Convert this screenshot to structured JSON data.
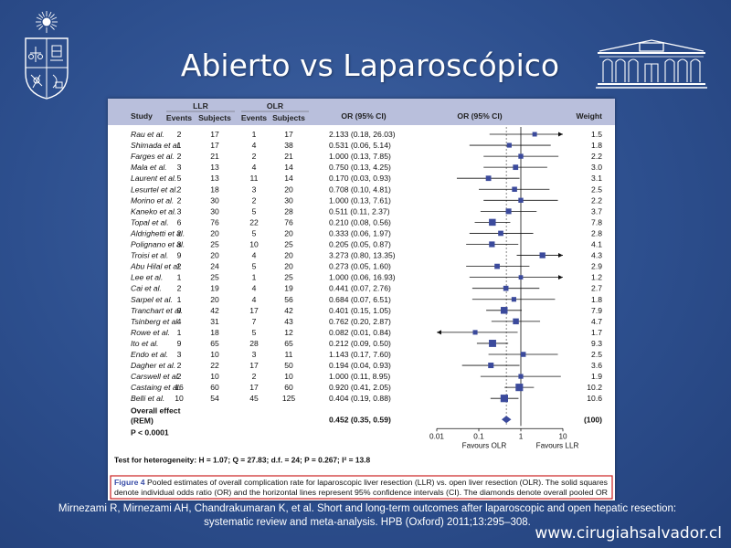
{
  "slide": {
    "title": "Abierto vs Laparoscópico",
    "citation_line1": "Mirnezami R, Mirnezami AH, Chandrakumaran K, et al. Short and long-term outcomes after laparoscopic and open hepatic resection:",
    "citation_line2": "systematic review and meta-analysis. HPB (Oxford) 2011;13:295–308.",
    "url": "www.cirugiahsalvador.cl"
  },
  "colors": {
    "background": "#2d4f8e",
    "header_band": "#b9bfdc",
    "marker": "#3b4a9c",
    "caption_border": "#cc2222"
  },
  "chart_data": {
    "type": "forest",
    "headers": {
      "study": "Study",
      "llr": "LLR",
      "olr": "OLR",
      "events": "Events",
      "subjects": "Subjects",
      "or_ci": "OR (95% CI)",
      "or_plot": "OR (95% CI)",
      "weight": "Weight"
    },
    "studies": [
      {
        "name": "Rau et al.",
        "llr_events": "2",
        "llr_subjects": "17",
        "olr_events": "1",
        "olr_subjects": "17",
        "or": 2.133,
        "lo": 0.18,
        "hi": 26.03,
        "ci_text": "2.133 (0.18, 26.03)",
        "weight": "1.5"
      },
      {
        "name": "Shimada et al.",
        "llr_events": "1",
        "llr_subjects": "17",
        "olr_events": "4",
        "olr_subjects": "38",
        "or": 0.531,
        "lo": 0.06,
        "hi": 5.14,
        "ci_text": "0.531 (0.06, 5.14)",
        "weight": "1.8"
      },
      {
        "name": "Farges et al.",
        "llr_events": "2",
        "llr_subjects": "21",
        "olr_events": "2",
        "olr_subjects": "21",
        "or": 1.0,
        "lo": 0.13,
        "hi": 7.85,
        "ci_text": "1.000 (0.13, 7.85)",
        "weight": "2.2"
      },
      {
        "name": "Mala et al.",
        "llr_events": "3",
        "llr_subjects": "13",
        "olr_events": "4",
        "olr_subjects": "14",
        "or": 0.75,
        "lo": 0.13,
        "hi": 4.25,
        "ci_text": "0.750 (0.13, 4.25)",
        "weight": "3.0"
      },
      {
        "name": "Laurent et al.",
        "llr_events": "5",
        "llr_subjects": "13",
        "olr_events": "11",
        "olr_subjects": "14",
        "or": 0.17,
        "lo": 0.03,
        "hi": 0.93,
        "ci_text": "0.170 (0.03, 0.93)",
        "weight": "3.1"
      },
      {
        "name": "Lesurtel et al.",
        "llr_events": "2",
        "llr_subjects": "18",
        "olr_events": "3",
        "olr_subjects": "20",
        "or": 0.708,
        "lo": 0.1,
        "hi": 4.81,
        "ci_text": "0.708 (0.10, 4.81)",
        "weight": "2.5"
      },
      {
        "name": "Morino et al.",
        "llr_events": "2",
        "llr_subjects": "30",
        "olr_events": "2",
        "olr_subjects": "30",
        "or": 1.0,
        "lo": 0.13,
        "hi": 7.61,
        "ci_text": "1.000 (0.13, 7.61)",
        "weight": "2.2"
      },
      {
        "name": "Kaneko et al.",
        "llr_events": "3",
        "llr_subjects": "30",
        "olr_events": "5",
        "olr_subjects": "28",
        "or": 0.511,
        "lo": 0.11,
        "hi": 2.37,
        "ci_text": "0.511 (0.11, 2.37)",
        "weight": "3.7"
      },
      {
        "name": "Topal et al.",
        "llr_events": "6",
        "llr_subjects": "76",
        "olr_events": "22",
        "olr_subjects": "76",
        "or": 0.21,
        "lo": 0.08,
        "hi": 0.56,
        "ci_text": "0.210 (0.08, 0.56)",
        "weight": "7.8"
      },
      {
        "name": "Aldrighetti et al.",
        "llr_events": "2",
        "llr_subjects": "20",
        "olr_events": "5",
        "olr_subjects": "20",
        "or": 0.333,
        "lo": 0.06,
        "hi": 1.97,
        "ci_text": "0.333 (0.06, 1.97)",
        "weight": "2.8"
      },
      {
        "name": "Polignano et al.",
        "llr_events": "3",
        "llr_subjects": "25",
        "olr_events": "10",
        "olr_subjects": "25",
        "or": 0.205,
        "lo": 0.05,
        "hi": 0.87,
        "ci_text": "0.205 (0.05, 0.87)",
        "weight": "4.1"
      },
      {
        "name": "Troisi et al.",
        "llr_events": "9",
        "llr_subjects": "20",
        "olr_events": "4",
        "olr_subjects": "20",
        "or": 3.273,
        "lo": 0.8,
        "hi": 13.35,
        "ci_text": "3.273 (0.80, 13.35)",
        "weight": "4.3"
      },
      {
        "name": "Abu Hilal et al.",
        "llr_events": "2",
        "llr_subjects": "24",
        "olr_events": "5",
        "olr_subjects": "20",
        "or": 0.273,
        "lo": 0.05,
        "hi": 1.6,
        "ci_text": "0.273 (0.05, 1.60)",
        "weight": "2.9"
      },
      {
        "name": "Lee et al.",
        "llr_events": "1",
        "llr_subjects": "25",
        "olr_events": "1",
        "olr_subjects": "25",
        "or": 1.0,
        "lo": 0.06,
        "hi": 16.93,
        "ci_text": "1.000 (0.06, 16.93)",
        "weight": "1.2"
      },
      {
        "name": "Cai et al.",
        "llr_events": "2",
        "llr_subjects": "19",
        "olr_events": "4",
        "olr_subjects": "19",
        "or": 0.441,
        "lo": 0.07,
        "hi": 2.76,
        "ci_text": "0.441 (0.07, 2.76)",
        "weight": "2.7"
      },
      {
        "name": "Sarpel et al.",
        "llr_events": "1",
        "llr_subjects": "20",
        "olr_events": "4",
        "olr_subjects": "56",
        "or": 0.684,
        "lo": 0.07,
        "hi": 6.51,
        "ci_text": "0.684 (0.07, 6.51)",
        "weight": "1.8"
      },
      {
        "name": "Tranchart et al.",
        "llr_events": "9",
        "llr_subjects": "42",
        "olr_events": "17",
        "olr_subjects": "42",
        "or": 0.401,
        "lo": 0.15,
        "hi": 1.05,
        "ci_text": "0.401 (0.15, 1.05)",
        "weight": "7.9"
      },
      {
        "name": "Tsinberg et al.",
        "llr_events": "4",
        "llr_subjects": "31",
        "olr_events": "7",
        "olr_subjects": "43",
        "or": 0.762,
        "lo": 0.2,
        "hi": 2.87,
        "ci_text": "0.762 (0.20, 2.87)",
        "weight": "4.7"
      },
      {
        "name": "Rowe et al.",
        "llr_events": "1",
        "llr_subjects": "18",
        "olr_events": "5",
        "olr_subjects": "12",
        "or": 0.082,
        "lo": 0.01,
        "hi": 0.84,
        "ci_text": "0.082 (0.01, 0.84)",
        "weight": "1.7"
      },
      {
        "name": "Ito et al.",
        "llr_events": "9",
        "llr_subjects": "65",
        "olr_events": "28",
        "olr_subjects": "65",
        "or": 0.212,
        "lo": 0.09,
        "hi": 0.5,
        "ci_text": "0.212 (0.09, 0.50)",
        "weight": "9.3"
      },
      {
        "name": "Endo et al.",
        "llr_events": "3",
        "llr_subjects": "10",
        "olr_events": "3",
        "olr_subjects": "11",
        "or": 1.143,
        "lo": 0.17,
        "hi": 7.6,
        "ci_text": "1.143 (0.17, 7.60)",
        "weight": "2.5"
      },
      {
        "name": "Dagher et al.",
        "llr_events": "2",
        "llr_subjects": "22",
        "olr_events": "17",
        "olr_subjects": "50",
        "or": 0.194,
        "lo": 0.04,
        "hi": 0.93,
        "ci_text": "0.194 (0.04, 0.93)",
        "weight": "3.6"
      },
      {
        "name": "Carswell et al.",
        "llr_events": "2",
        "llr_subjects": "10",
        "olr_events": "2",
        "olr_subjects": "10",
        "or": 1.0,
        "lo": 0.11,
        "hi": 8.95,
        "ci_text": "1.000 (0.11, 8.95)",
        "weight": "1.9"
      },
      {
        "name": "Castaing et al.",
        "llr_events": "16",
        "llr_subjects": "60",
        "olr_events": "17",
        "olr_subjects": "60",
        "or": 0.92,
        "lo": 0.41,
        "hi": 2.05,
        "ci_text": "0.920 (0.41, 2.05)",
        "weight": "10.2"
      },
      {
        "name": "Belli et al.",
        "llr_events": "10",
        "llr_subjects": "54",
        "olr_events": "45",
        "olr_subjects": "125",
        "or": 0.404,
        "lo": 0.19,
        "hi": 0.88,
        "ci_text": "0.404 (0.19, 0.88)",
        "weight": "10.6"
      }
    ],
    "overall": {
      "label1": "Overall effect",
      "label2": "(REM)",
      "or": 0.452,
      "lo": 0.35,
      "hi": 0.59,
      "ci_text": "0.452 (0.35, 0.59)",
      "weight": "(100)"
    },
    "p_value": "P < 0.0001",
    "heterogeneity": "Test for heterogeneity: H = 1.07; Q = 27.83; d.f. = 24; P = 0.267; I² = 13.8",
    "x_axis": {
      "scale": "log",
      "range": [
        0.01,
        10
      ],
      "ticks": [
        {
          "value": 0.01,
          "label": "0.01"
        },
        {
          "value": 0.1,
          "label": "0.1"
        },
        {
          "value": 1,
          "label": "1"
        },
        {
          "value": 10,
          "label": "10"
        }
      ],
      "left_label": "Favours OLR",
      "right_label": "Favours LLR"
    },
    "caption_label": "Figure 4",
    "caption_line1": "Pooled estimates of overall complication rate for laparoscopic liver resection (LLR) vs. open liver resection (OLR). The solid squares",
    "caption_line2": "denote individual odds ratio (OR) and the horizontal lines represent 95% confidence intervals (CI). The diamonds denote overall pooled OR"
  }
}
